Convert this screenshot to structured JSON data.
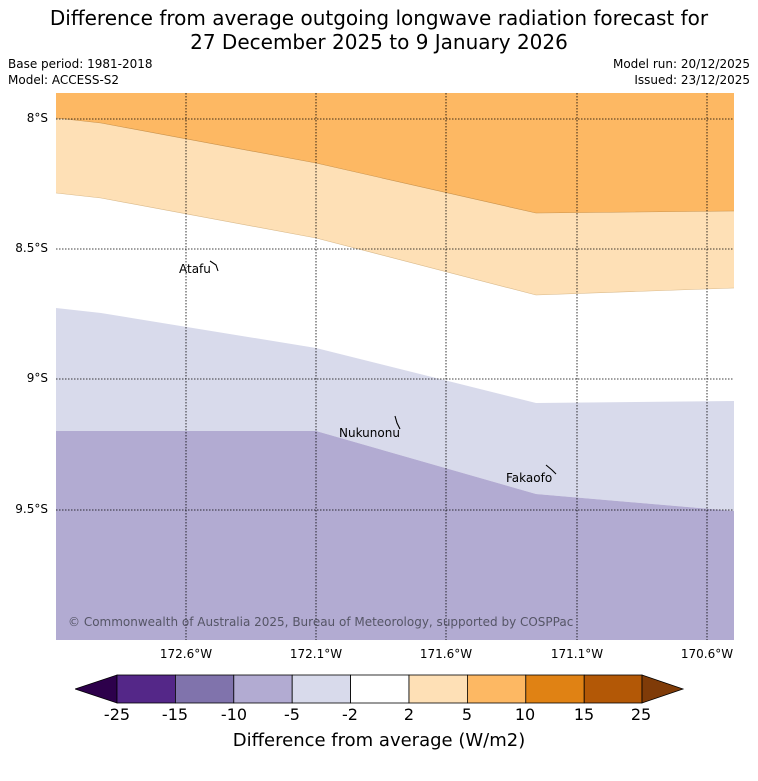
{
  "title": {
    "line1": "Difference from average outgoing longwave radiation forecast for",
    "line2": "27 December 2025 to 9 January 2026"
  },
  "meta": {
    "base_period": "Base period: 1981-2018",
    "model": "Model: ACCESS-S2",
    "model_run": "Model run: 20/12/2025",
    "issued": "Issued: 23/12/2025"
  },
  "map": {
    "lat_labels": [
      "8°S",
      "8.5°S",
      "9°S",
      "9.5°S"
    ],
    "lon_labels": [
      "172.6°W",
      "172.1°W",
      "171.6°W",
      "171.1°W",
      "170.6°W"
    ],
    "places": [
      {
        "name": "Atafu"
      },
      {
        "name": "Nukunonu"
      },
      {
        "name": "Fakaofo"
      }
    ],
    "copyright": "© Commonwealth of Australia 2025, Bureau of Meteorology, supported by COSPPac"
  },
  "colorbar": {
    "ticks": [
      "-25",
      "-15",
      "-10",
      "-5",
      "-2",
      "2",
      "5",
      "10",
      "15",
      "25"
    ],
    "colors": {
      "extend_low": "#2d004b",
      "b1": "#542788",
      "b2": "#8073ac",
      "b3": "#b2abd2",
      "b4": "#d8daeb",
      "b5": "#ffffff",
      "b6": "#fee0b6",
      "b7": "#fdb863",
      "b8": "#e08214",
      "b9": "#b35806",
      "extend_high": "#7f3b08"
    },
    "label": "Difference from average (W/m2)"
  }
}
